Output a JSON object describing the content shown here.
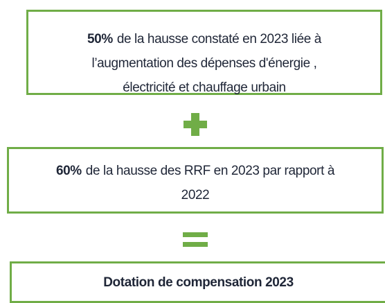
{
  "boxes": [
    {
      "bold": "50%",
      "lines": [
        "de la hausse constaté en 2023 liée à",
        "l’augmentation des dépenses d'énergie ,",
        "électricité et chauffage urbain"
      ]
    },
    {
      "bold": "60%",
      "lines": [
        "de la hausse des RRF  en 2023 par rapport à",
        "2022"
      ]
    },
    {
      "bold": "Dotation de compensation 2023",
      "lines": []
    }
  ]
}
